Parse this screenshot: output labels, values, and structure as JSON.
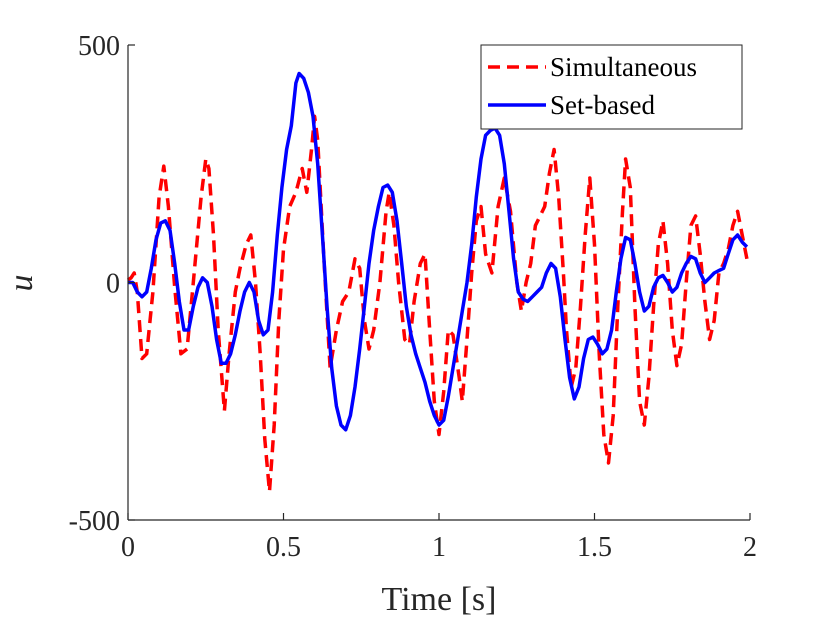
{
  "chart_data": {
    "type": "line",
    "title": "",
    "xlabel": "Time [s]",
    "ylabel": "u",
    "xlim": [
      0,
      2
    ],
    "ylim": [
      -500,
      500
    ],
    "x_ticks": [
      0,
      0.5,
      1,
      1.5,
      2
    ],
    "x_tick_labels": [
      "0",
      "0.5",
      "1",
      "1.5",
      "2"
    ],
    "y_ticks": [
      -500,
      0,
      500
    ],
    "y_tick_labels": [
      "-500",
      "0",
      "500"
    ],
    "grid": false,
    "legend_position": "top-right",
    "series": [
      {
        "name": "Simultaneous",
        "color": "#ff0000",
        "style": "dashed",
        "points": [
          [
            0,
            5
          ],
          [
            0.01,
            10
          ],
          [
            0.02,
            20
          ],
          [
            0.03,
            -20
          ],
          [
            0.045,
            -160
          ],
          [
            0.06,
            -150
          ],
          [
            0.08,
            -20
          ],
          [
            0.1,
            180
          ],
          [
            0.115,
            245
          ],
          [
            0.13,
            160
          ],
          [
            0.15,
            -10
          ],
          [
            0.17,
            -150
          ],
          [
            0.19,
            -140
          ],
          [
            0.21,
            0
          ],
          [
            0.235,
            180
          ],
          [
            0.25,
            260
          ],
          [
            0.26,
            240
          ],
          [
            0.275,
            100
          ],
          [
            0.29,
            -100
          ],
          [
            0.31,
            -270
          ],
          [
            0.325,
            -150
          ],
          [
            0.345,
            -20
          ],
          [
            0.36,
            30
          ],
          [
            0.38,
            80
          ],
          [
            0.395,
            100
          ],
          [
            0.41,
            0
          ],
          [
            0.425,
            -150
          ],
          [
            0.44,
            -330
          ],
          [
            0.455,
            -440
          ],
          [
            0.47,
            -300
          ],
          [
            0.485,
            -80
          ],
          [
            0.5,
            70
          ],
          [
            0.52,
            160
          ],
          [
            0.54,
            190
          ],
          [
            0.56,
            240
          ],
          [
            0.575,
            190
          ],
          [
            0.59,
            280
          ],
          [
            0.6,
            350
          ],
          [
            0.61,
            300
          ],
          [
            0.63,
            50
          ],
          [
            0.65,
            -180
          ],
          [
            0.67,
            -100
          ],
          [
            0.69,
            -40
          ],
          [
            0.71,
            -20
          ],
          [
            0.73,
            50
          ],
          [
            0.745,
            30
          ],
          [
            0.76,
            -80
          ],
          [
            0.775,
            -140
          ],
          [
            0.79,
            -100
          ],
          [
            0.81,
            0
          ],
          [
            0.83,
            150
          ],
          [
            0.84,
            190
          ],
          [
            0.855,
            120
          ],
          [
            0.87,
            0
          ],
          [
            0.89,
            -120
          ],
          [
            0.905,
            -130
          ],
          [
            0.92,
            -40
          ],
          [
            0.94,
            40
          ],
          [
            0.955,
            60
          ],
          [
            0.97,
            -100
          ],
          [
            0.985,
            -250
          ],
          [
            1.0,
            -320
          ],
          [
            1.015,
            -230
          ],
          [
            1.03,
            -100
          ],
          [
            1.045,
            -110
          ],
          [
            1.065,
            -200
          ],
          [
            1.075,
            -250
          ],
          [
            1.09,
            -120
          ],
          [
            1.105,
            20
          ],
          [
            1.12,
            130
          ],
          [
            1.135,
            160
          ],
          [
            1.15,
            60
          ],
          [
            1.17,
            20
          ],
          [
            1.19,
            160
          ],
          [
            1.21,
            220
          ],
          [
            1.23,
            150
          ],
          [
            1.25,
            0
          ],
          [
            1.265,
            -60
          ],
          [
            1.28,
            0
          ],
          [
            1.295,
            40
          ],
          [
            1.31,
            120
          ],
          [
            1.325,
            140
          ],
          [
            1.34,
            160
          ],
          [
            1.355,
            230
          ],
          [
            1.37,
            280
          ],
          [
            1.385,
            180
          ],
          [
            1.4,
            20
          ],
          [
            1.41,
            -100
          ],
          [
            1.425,
            -220
          ],
          [
            1.44,
            -180
          ],
          [
            1.455,
            -50
          ],
          [
            1.47,
            100
          ],
          [
            1.485,
            220
          ],
          [
            1.5,
            80
          ],
          [
            1.515,
            -150
          ],
          [
            1.53,
            -320
          ],
          [
            1.545,
            -380
          ],
          [
            1.56,
            -280
          ],
          [
            1.575,
            -50
          ],
          [
            1.59,
            150
          ],
          [
            1.6,
            260
          ],
          [
            1.615,
            200
          ],
          [
            1.63,
            -50
          ],
          [
            1.645,
            -250
          ],
          [
            1.66,
            -300
          ],
          [
            1.675,
            -200
          ],
          [
            1.69,
            -50
          ],
          [
            1.705,
            80
          ],
          [
            1.72,
            130
          ],
          [
            1.735,
            40
          ],
          [
            1.75,
            -100
          ],
          [
            1.765,
            -175
          ],
          [
            1.78,
            -130
          ],
          [
            1.795,
            0
          ],
          [
            1.81,
            120
          ],
          [
            1.825,
            140
          ],
          [
            1.84,
            60
          ],
          [
            1.855,
            -40
          ],
          [
            1.87,
            -120
          ],
          [
            1.885,
            -80
          ],
          [
            1.9,
            20
          ],
          [
            1.915,
            40
          ],
          [
            1.93,
            70
          ],
          [
            1.945,
            120
          ],
          [
            1.96,
            150
          ],
          [
            1.975,
            100
          ],
          [
            1.99,
            50
          ]
        ]
      },
      {
        "name": "Set-based",
        "color": "#0000ff",
        "style": "solid",
        "points": [
          [
            0,
            0
          ],
          [
            0.015,
            0
          ],
          [
            0.03,
            -20
          ],
          [
            0.045,
            -30
          ],
          [
            0.06,
            -20
          ],
          [
            0.075,
            30
          ],
          [
            0.09,
            90
          ],
          [
            0.105,
            125
          ],
          [
            0.12,
            130
          ],
          [
            0.135,
            110
          ],
          [
            0.15,
            40
          ],
          [
            0.165,
            -40
          ],
          [
            0.18,
            -100
          ],
          [
            0.195,
            -100
          ],
          [
            0.21,
            -50
          ],
          [
            0.225,
            -10
          ],
          [
            0.24,
            10
          ],
          [
            0.255,
            0
          ],
          [
            0.27,
            -50
          ],
          [
            0.285,
            -120
          ],
          [
            0.3,
            -170
          ],
          [
            0.315,
            -170
          ],
          [
            0.33,
            -150
          ],
          [
            0.345,
            -110
          ],
          [
            0.36,
            -60
          ],
          [
            0.375,
            -20
          ],
          [
            0.39,
            0
          ],
          [
            0.405,
            -20
          ],
          [
            0.42,
            -80
          ],
          [
            0.435,
            -110
          ],
          [
            0.45,
            -100
          ],
          [
            0.465,
            -20
          ],
          [
            0.48,
            100
          ],
          [
            0.495,
            200
          ],
          [
            0.51,
            280
          ],
          [
            0.525,
            330
          ],
          [
            0.54,
            420
          ],
          [
            0.55,
            440
          ],
          [
            0.565,
            430
          ],
          [
            0.58,
            400
          ],
          [
            0.595,
            350
          ],
          [
            0.61,
            250
          ],
          [
            0.625,
            100
          ],
          [
            0.64,
            -50
          ],
          [
            0.655,
            -180
          ],
          [
            0.67,
            -260
          ],
          [
            0.685,
            -300
          ],
          [
            0.7,
            -310
          ],
          [
            0.715,
            -280
          ],
          [
            0.73,
            -220
          ],
          [
            0.745,
            -140
          ],
          [
            0.76,
            -50
          ],
          [
            0.775,
            40
          ],
          [
            0.79,
            110
          ],
          [
            0.805,
            160
          ],
          [
            0.82,
            200
          ],
          [
            0.835,
            205
          ],
          [
            0.85,
            190
          ],
          [
            0.865,
            130
          ],
          [
            0.88,
            40
          ],
          [
            0.895,
            -50
          ],
          [
            0.91,
            -110
          ],
          [
            0.925,
            -150
          ],
          [
            0.94,
            -180
          ],
          [
            0.955,
            -210
          ],
          [
            0.97,
            -250
          ],
          [
            0.985,
            -280
          ],
          [
            1.0,
            -300
          ],
          [
            1.015,
            -290
          ],
          [
            1.03,
            -240
          ],
          [
            1.045,
            -180
          ],
          [
            1.06,
            -120
          ],
          [
            1.075,
            -60
          ],
          [
            1.09,
            0
          ],
          [
            1.105,
            80
          ],
          [
            1.12,
            180
          ],
          [
            1.135,
            260
          ],
          [
            1.15,
            310
          ],
          [
            1.165,
            320
          ],
          [
            1.18,
            325
          ],
          [
            1.195,
            310
          ],
          [
            1.21,
            250
          ],
          [
            1.225,
            150
          ],
          [
            1.24,
            50
          ],
          [
            1.255,
            -20
          ],
          [
            1.27,
            -35
          ],
          [
            1.285,
            -40
          ],
          [
            1.3,
            -30
          ],
          [
            1.315,
            -20
          ],
          [
            1.33,
            -10
          ],
          [
            1.345,
            20
          ],
          [
            1.36,
            40
          ],
          [
            1.375,
            30
          ],
          [
            1.39,
            -30
          ],
          [
            1.405,
            -120
          ],
          [
            1.42,
            -200
          ],
          [
            1.435,
            -245
          ],
          [
            1.45,
            -220
          ],
          [
            1.465,
            -160
          ],
          [
            1.48,
            -120
          ],
          [
            1.495,
            -115
          ],
          [
            1.51,
            -130
          ],
          [
            1.525,
            -150
          ],
          [
            1.54,
            -140
          ],
          [
            1.555,
            -100
          ],
          [
            1.57,
            -20
          ],
          [
            1.585,
            50
          ],
          [
            1.6,
            95
          ],
          [
            1.615,
            90
          ],
          [
            1.63,
            40
          ],
          [
            1.645,
            -20
          ],
          [
            1.66,
            -60
          ],
          [
            1.675,
            -50
          ],
          [
            1.69,
            -10
          ],
          [
            1.705,
            10
          ],
          [
            1.72,
            15
          ],
          [
            1.735,
            0
          ],
          [
            1.75,
            -20
          ],
          [
            1.765,
            -10
          ],
          [
            1.78,
            20
          ],
          [
            1.795,
            40
          ],
          [
            1.81,
            55
          ],
          [
            1.825,
            50
          ],
          [
            1.84,
            20
          ],
          [
            1.855,
            0
          ],
          [
            1.87,
            10
          ],
          [
            1.885,
            20
          ],
          [
            1.9,
            25
          ],
          [
            1.915,
            30
          ],
          [
            1.93,
            60
          ],
          [
            1.945,
            90
          ],
          [
            1.96,
            100
          ],
          [
            1.975,
            85
          ],
          [
            1.99,
            75
          ]
        ]
      }
    ]
  }
}
